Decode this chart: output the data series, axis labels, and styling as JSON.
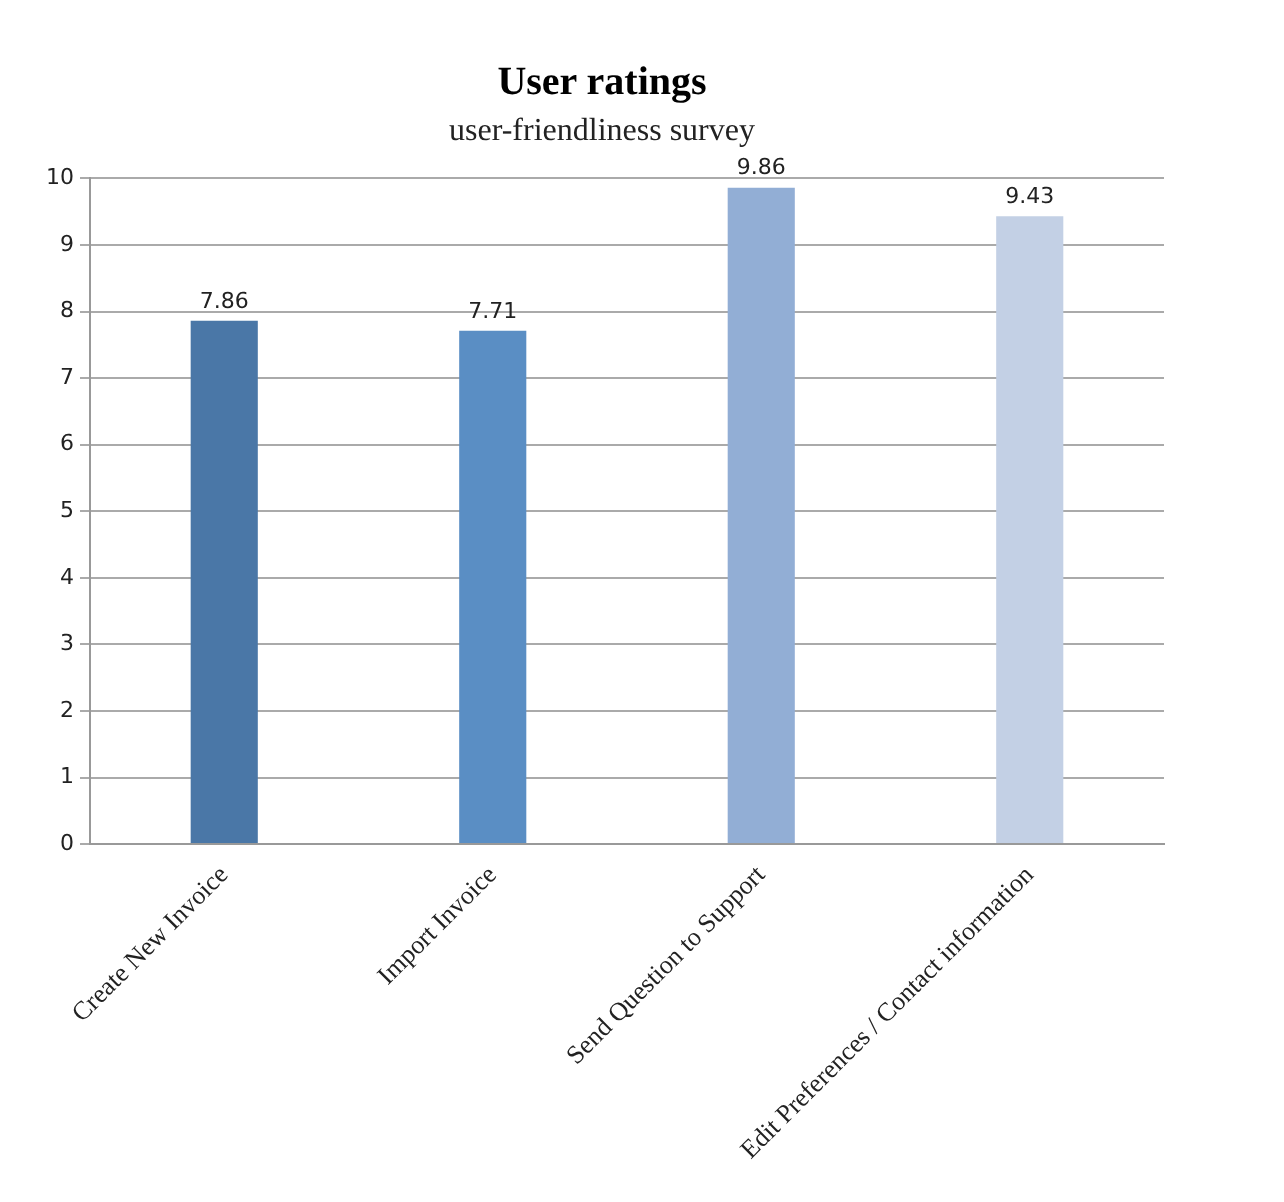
{
  "chart_data": {
    "type": "bar",
    "title": "User ratings",
    "subtitle": "user-friendliness survey",
    "categories": [
      "Create New Invoice",
      "Import Invoice",
      "Send Question to Support",
      "Edit Preferences / Contact information"
    ],
    "values": [
      7.86,
      7.71,
      9.86,
      9.43
    ],
    "colors": [
      "#4a77a7",
      "#5a8ec4",
      "#92aed5",
      "#c3d0e5"
    ],
    "ylim": [
      0,
      10
    ],
    "yticks": [
      0,
      1,
      2,
      3,
      4,
      5,
      6,
      7,
      8,
      9,
      10
    ],
    "grid": "y",
    "data_labels": true,
    "legend": false
  }
}
